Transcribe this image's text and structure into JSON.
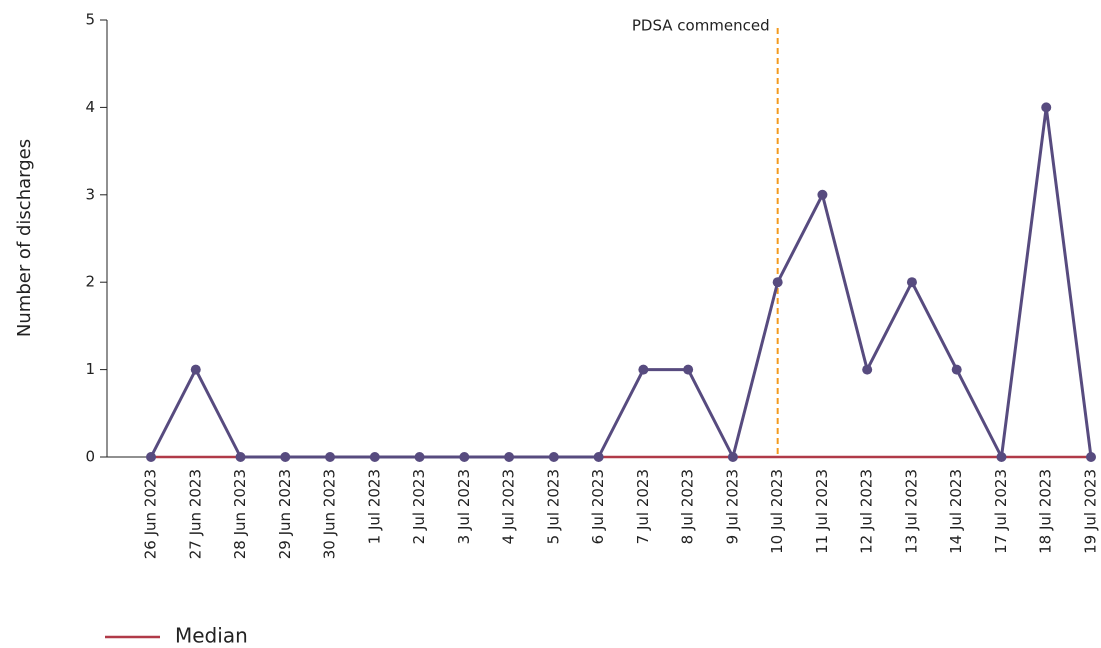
{
  "chart_data": {
    "type": "line",
    "y_label": "Number of discharges",
    "categories": [
      "26 Jun 2023",
      "27 Jun 2023",
      "28 Jun 2023",
      "29 Jun 2023",
      "30 Jun 2023",
      "1 Jul 2023",
      "2 Jul 2023",
      "3 Jul 2023",
      "4 Jul 2023",
      "5 Jul 2023",
      "6 Jul 2023",
      "7 Jul 2023",
      "8 Jul 2023",
      "9 Jul 2023",
      "10 Jul 2023",
      "11 Jul 2023",
      "12 Jul 2023",
      "13 Jul 2023",
      "14 Jul 2023",
      "17 Jul 2023",
      "18 Jul 2023",
      "19 Jul 2023"
    ],
    "series": [
      {
        "color": "#574b7f",
        "markers": true,
        "values": [
          0,
          1,
          0,
          0,
          0,
          0,
          0,
          0,
          0,
          0,
          0,
          1,
          1,
          0,
          2,
          3,
          1,
          2,
          1,
          0,
          4,
          0
        ]
      },
      {
        "name": "Median",
        "color": "#b03a48",
        "markers": false,
        "values": [
          0,
          0,
          0,
          0,
          0,
          0,
          0,
          0,
          0,
          0,
          0,
          0,
          0,
          0,
          0,
          0,
          0,
          0,
          0,
          0,
          0,
          0
        ]
      }
    ],
    "annotations": [
      {
        "text": "PDSA commenced",
        "x": "10 Jul 2023",
        "color": "#f39a1e"
      }
    ],
    "ylim": [
      0,
      5
    ],
    "yticks": [
      0,
      1,
      2,
      3,
      4,
      5
    ],
    "grid": false,
    "legend": "bottom-left"
  }
}
